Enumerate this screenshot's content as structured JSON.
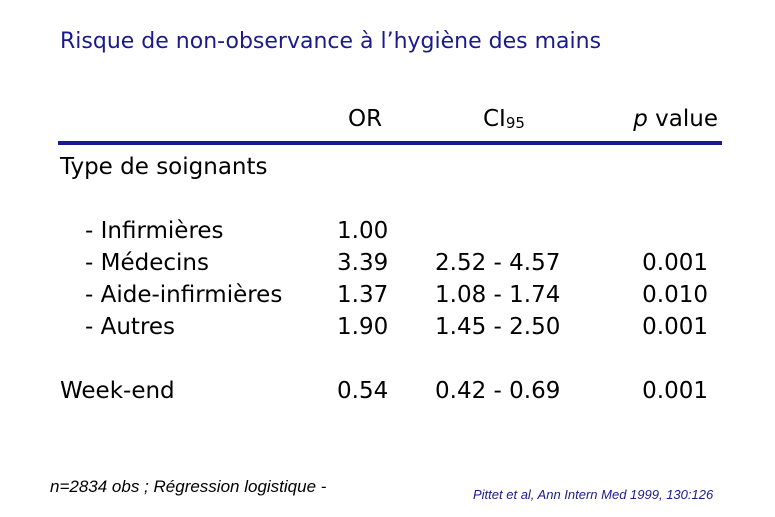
{
  "title": "Risque de non-observance à l’hygiène des mains",
  "table": {
    "header": {
      "or": "OR",
      "ci": "CI",
      "ci_sub": "95",
      "p": "p",
      "p_rest": "value"
    },
    "rows": [
      [
        "Type de soignants"
      ],
      [
        "- Infirmières",
        "1.00"
      ],
      [
        "- Médecins",
        "3.39",
        "2.52 - 4.57",
        "0.001"
      ],
      [
        "- Aide-infirmières",
        "1.37",
        "1.08 - 1.74",
        "0.010"
      ],
      [
        "- Autres",
        "1.90",
        "1.45 - 2.50",
        "0.001"
      ],
      [
        "Week-end",
        "0.54",
        "0.42 - 0.69",
        "0.001"
      ]
    ]
  },
  "footnote": "n=2834 obs ; Régression logistique -",
  "citation": "Pittet et al, Ann Intern Med 1999, 130:126"
}
